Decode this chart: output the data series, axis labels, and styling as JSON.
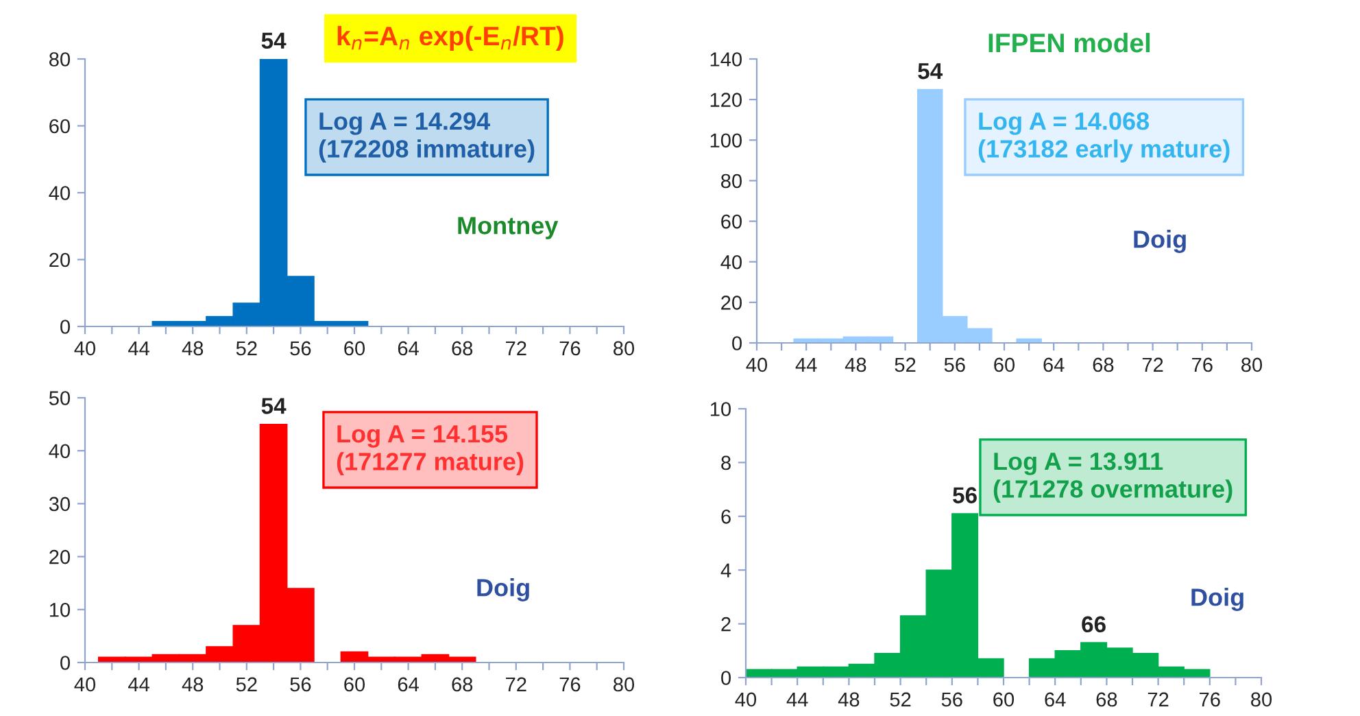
{
  "chart_data": [
    {
      "type": "histogram",
      "bins": [
        45,
        47,
        49,
        51,
        53,
        55,
        57,
        59,
        61
      ],
      "values": [
        1.5,
        1.5,
        3,
        7,
        80,
        15,
        1.5,
        1.5
      ],
      "color": "#0070c0",
      "xlim": [
        40,
        80
      ],
      "ylim": [
        0,
        80
      ],
      "xticks": [
        40,
        {
          "value": 42,
          "label": null
        },
        44,
        {
          "value": 46,
          "label": null
        },
        48,
        {
          "value": 50,
          "label": null
        },
        52,
        {
          "value": 54,
          "label": null
        },
        56,
        {
          "value": 58,
          "label": null
        },
        60,
        {
          "value": 62,
          "label": null
        },
        64,
        {
          "value": 66,
          "label": null
        },
        68,
        {
          "value": 70,
          "label": null
        },
        72,
        {
          "value": 74,
          "label": null
        },
        76,
        {
          "value": 78,
          "label": null
        },
        80
      ],
      "yticks": [
        0,
        20,
        40,
        60,
        80
      ],
      "grid": false,
      "annotations": [
        {
          "text": "54",
          "x": 54,
          "y": 80
        },
        "k$_{n}$=A$_{n}$ exp(-E$_{n}$/RT)",
        "Log A = 14.294\n(172208 immature)",
        "Montney"
      ]
    },
    {
      "type": "histogram",
      "bins": [
        43,
        45,
        47,
        49,
        51,
        53,
        55,
        57,
        59,
        61,
        63
      ],
      "values": [
        2,
        2,
        3,
        3,
        0,
        125,
        13,
        7,
        0,
        2
      ],
      "color": "#99ccff",
      "xlim": [
        40,
        80
      ],
      "ylim": [
        0,
        140
      ],
      "xticks": [
        40,
        {
          "value": 42,
          "label": null
        },
        44,
        {
          "value": 46,
          "label": null
        },
        48,
        {
          "value": 50,
          "label": null
        },
        52,
        {
          "value": 54,
          "label": null
        },
        56,
        {
          "value": 58,
          "label": null
        },
        60,
        {
          "value": 62,
          "label": null
        },
        64,
        {
          "value": 66,
          "label": null
        },
        68,
        {
          "value": 70,
          "label": null
        },
        72,
        {
          "value": 74,
          "label": null
        },
        76,
        {
          "value": 78,
          "label": null
        },
        80
      ],
      "yticks": [
        0,
        20,
        40,
        60,
        80,
        100,
        120,
        140
      ],
      "grid": false,
      "annotations": [
        {
          "text": "54",
          "x": 54,
          "y": 125
        },
        "IFPEN model",
        "Log A = 14.068\n(173182 early mature)",
        "Doig"
      ]
    },
    {
      "type": "histogram",
      "bins": [
        41,
        43,
        45,
        47,
        49,
        51,
        53,
        55,
        57,
        59,
        61,
        63,
        65,
        67,
        69
      ],
      "values": [
        1,
        1,
        1.5,
        1.5,
        3,
        7,
        45,
        14,
        0,
        2,
        1,
        1,
        1.5,
        1
      ],
      "color": "#ff0000",
      "xlim": [
        40,
        80
      ],
      "ylim": [
        0,
        50
      ],
      "xticks": [
        40,
        {
          "value": 42,
          "label": null
        },
        44,
        {
          "value": 46,
          "label": null
        },
        48,
        {
          "value": 50,
          "label": null
        },
        52,
        {
          "value": 54,
          "label": null
        },
        56,
        {
          "value": 58,
          "label": null
        },
        60,
        {
          "value": 62,
          "label": null
        },
        64,
        {
          "value": 66,
          "label": null
        },
        68,
        {
          "value": 70,
          "label": null
        },
        72,
        {
          "value": 74,
          "label": null
        },
        76,
        {
          "value": 78,
          "label": null
        },
        80
      ],
      "yticks": [
        0,
        10,
        20,
        30,
        40,
        50
      ],
      "grid": false,
      "annotations": [
        {
          "text": "54",
          "x": 54,
          "y": 45
        },
        "Log A = 14.155\n(171277 mature)",
        "Doig"
      ]
    },
    {
      "type": "histogram",
      "bins": [
        40,
        42,
        44,
        46,
        48,
        50,
        52,
        54,
        56,
        58,
        60,
        62,
        64,
        66,
        68,
        70,
        72,
        74,
        76
      ],
      "values": [
        0.3,
        0.3,
        0.4,
        0.4,
        0.5,
        0.9,
        2.3,
        4.0,
        6.1,
        0.7,
        0,
        0.7,
        1.0,
        1.3,
        1.1,
        0.9,
        0.4,
        0.3
      ],
      "color": "#00b050",
      "xlim": [
        40,
        80
      ],
      "ylim": [
        0,
        10
      ],
      "xticks": [
        40,
        {
          "value": 42,
          "label": null
        },
        44,
        {
          "value": 46,
          "label": null
        },
        48,
        {
          "value": 50,
          "label": null
        },
        52,
        {
          "value": 54,
          "label": null
        },
        56,
        {
          "value": 58,
          "label": null
        },
        60,
        {
          "value": 62,
          "label": null
        },
        64,
        {
          "value": 66,
          "label": null
        },
        68,
        {
          "value": 70,
          "label": null
        },
        72,
        {
          "value": 74,
          "label": null
        },
        76,
        {
          "value": 78,
          "label": null
        },
        80
      ],
      "yticks": [
        0,
        2,
        4,
        6,
        8,
        10
      ],
      "grid": false,
      "annotations": [
        {
          "text": "56",
          "x": 57,
          "y": 6.1
        },
        {
          "text": "66",
          "x": 67,
          "y": 1.3
        },
        "Log A = 13.911\n(171278 overmature)",
        "Doig"
      ]
    }
  ]
}
